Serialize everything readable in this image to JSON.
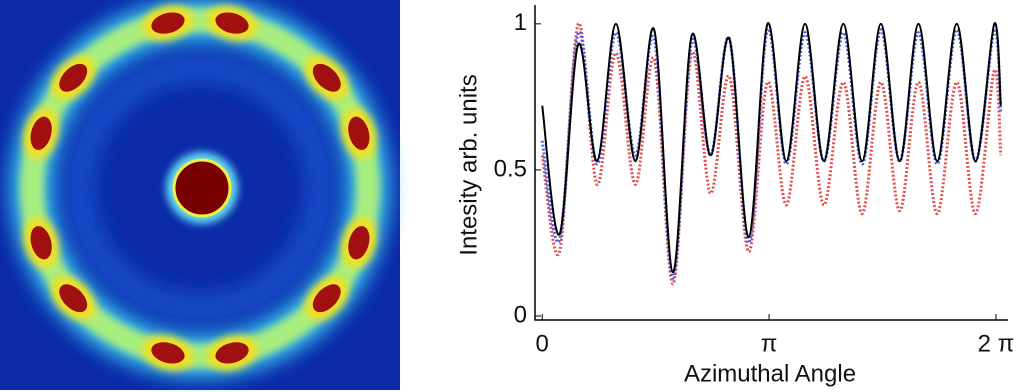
{
  "chart_data": {
    "type": "line",
    "x_label": "Azimuthal Angle",
    "y_label": "Intesity arb. units",
    "x": [
      0,
      0.24,
      0.5,
      0.76,
      1.02,
      1.29,
      1.55,
      1.81,
      2.07,
      2.33,
      2.59,
      2.86,
      3.12,
      3.38,
      3.64,
      3.9,
      4.17,
      4.43,
      4.69,
      4.95,
      5.21,
      5.47,
      5.74,
      6.0,
      6.26,
      6.35
    ],
    "series": [
      {
        "color": "#e05050",
        "dash": true,
        "values": [
          0.55,
          0.22,
          1.0,
          0.45,
          0.9,
          0.45,
          0.88,
          0.11,
          0.9,
          0.42,
          0.82,
          0.22,
          0.8,
          0.38,
          0.82,
          0.38,
          0.8,
          0.35,
          0.8,
          0.36,
          0.8,
          0.35,
          0.8,
          0.35,
          0.84,
          0.55
        ]
      },
      {
        "color": "#4a5ee8",
        "dash": true,
        "values": [
          0.6,
          0.26,
          0.97,
          0.52,
          0.97,
          0.55,
          0.95,
          0.13,
          0.94,
          0.55,
          0.95,
          0.25,
          0.98,
          0.52,
          0.97,
          0.53,
          0.97,
          0.52,
          0.98,
          0.53,
          0.97,
          0.52,
          0.98,
          0.53,
          0.98,
          0.7
        ]
      },
      {
        "color": "#000000",
        "dash": false,
        "values": [
          0.72,
          0.28,
          0.93,
          0.53,
          1.0,
          0.53,
          0.98,
          0.15,
          0.96,
          0.55,
          0.95,
          0.27,
          1.0,
          0.53,
          1.0,
          0.53,
          1.0,
          0.53,
          1.0,
          0.53,
          1.0,
          0.53,
          1.0,
          0.53,
          1.0,
          0.72
        ]
      }
    ],
    "xlim": [
      -0.1,
      6.45
    ],
    "xticks": [
      0,
      {
        "value": 3.1416,
        "label": "π"
      },
      {
        "value": 6.2832,
        "label": "2 π"
      }
    ],
    "ylim": [
      0,
      1.02
    ],
    "yticks": [
      0,
      0.5,
      1
    ]
  }
}
